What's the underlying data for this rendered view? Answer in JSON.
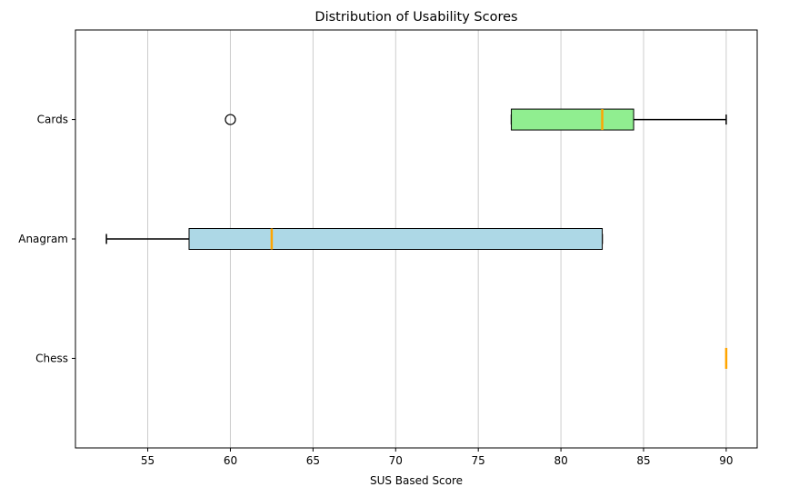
{
  "chart_data": {
    "type": "boxplot",
    "orientation": "horizontal",
    "title": "Distribution of Usability Scores",
    "xlabel": "SUS Based Score",
    "ylabel": "",
    "xlim": [
      50.625,
      91.875
    ],
    "xticks": [
      55,
      60,
      65,
      70,
      75,
      80,
      85,
      90
    ],
    "grid": {
      "x": true,
      "y": false
    },
    "categories": [
      "Chess",
      "Anagram",
      "Cards"
    ],
    "boxes": [
      {
        "category": "Chess",
        "whisker_low": 90,
        "q1": 90,
        "median": 90,
        "q3": 90,
        "whisker_high": 90,
        "outliers": [],
        "fill": "#add8e6"
      },
      {
        "category": "Anagram",
        "whisker_low": 52.5,
        "q1": 57.5,
        "median": 62.5,
        "q3": 82.5,
        "whisker_high": 82.5,
        "outliers": [],
        "fill": "#add8e6"
      },
      {
        "category": "Cards",
        "whisker_low": 77.0,
        "q1": 77.0,
        "median": 82.5,
        "q3": 84.4,
        "whisker_high": 90,
        "outliers": [
          60
        ],
        "fill": "#90ee90"
      }
    ],
    "colors": {
      "median": "#ffa500",
      "grid": "#cccccc",
      "edge": "#000000"
    }
  }
}
